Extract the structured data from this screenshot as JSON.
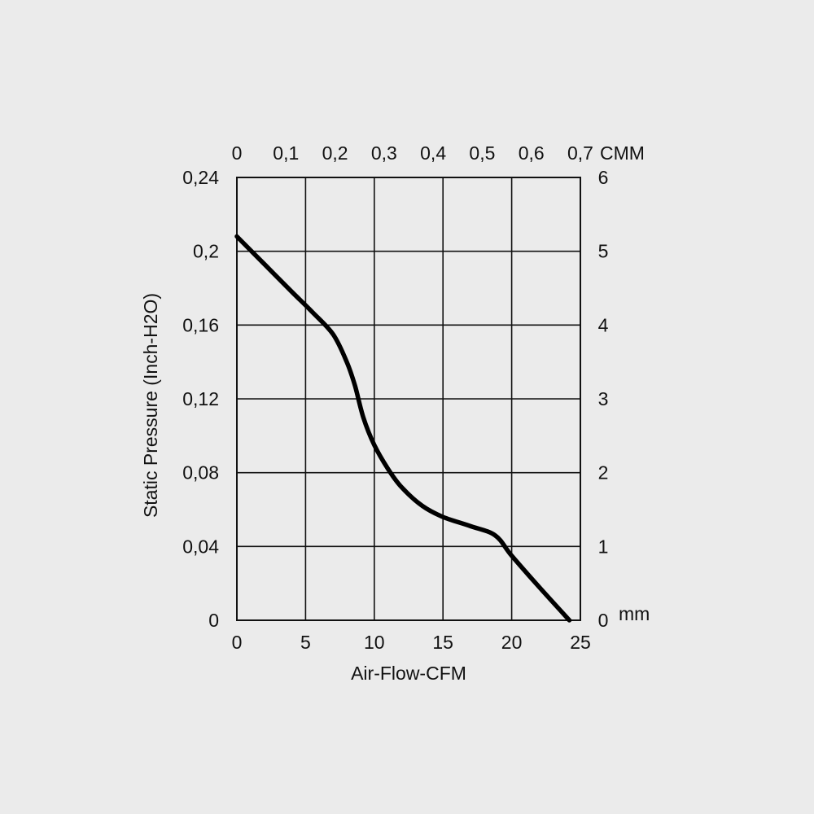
{
  "chart_data": {
    "type": "line",
    "title": "",
    "xlabel": "Air-Flow-CFM",
    "ylabel": "Static Pressure (Inch-H2O)",
    "xlim": [
      0,
      25
    ],
    "ylim": [
      0,
      0.24
    ],
    "x_ticks": [
      0,
      5,
      10,
      15,
      20,
      25
    ],
    "x_tick_labels": [
      "0",
      "5",
      "10",
      "15",
      "20",
      "25"
    ],
    "y_ticks": [
      0,
      0.04,
      0.08,
      0.12,
      0.16,
      0.2,
      0.24
    ],
    "y_tick_labels": [
      "0",
      "0,04",
      "0,08",
      "0,12",
      "0,16",
      "0,2",
      "0,24"
    ],
    "top_axis": {
      "unit_label": "CMM",
      "ticks": [
        0,
        0.1,
        0.2,
        0.3,
        0.4,
        0.5,
        0.6,
        0.7
      ],
      "tick_labels": [
        "0",
        "0,1",
        "0,2",
        "0,3",
        "0,4",
        "0,5",
        "0,6",
        "0,7"
      ]
    },
    "right_axis": {
      "unit_label": "mm",
      "ticks": [
        0,
        1,
        2,
        3,
        4,
        5,
        6
      ],
      "tick_labels": [
        "0",
        "1",
        "2",
        "3",
        "4",
        "5",
        "6"
      ]
    },
    "grid": true,
    "series": [
      {
        "color": "#000000",
        "x": [
          0,
          2,
          4,
          5.5,
          7,
          8,
          8.6,
          9.2,
          10,
          11,
          12,
          13.5,
          15,
          17,
          18.8,
          20,
          22,
          24.2
        ],
        "y": [
          0.208,
          0.193,
          0.178,
          0.167,
          0.155,
          0.14,
          0.127,
          0.11,
          0.095,
          0.082,
          0.072,
          0.062,
          0.056,
          0.051,
          0.046,
          0.035,
          0.018,
          0.0
        ]
      }
    ]
  }
}
